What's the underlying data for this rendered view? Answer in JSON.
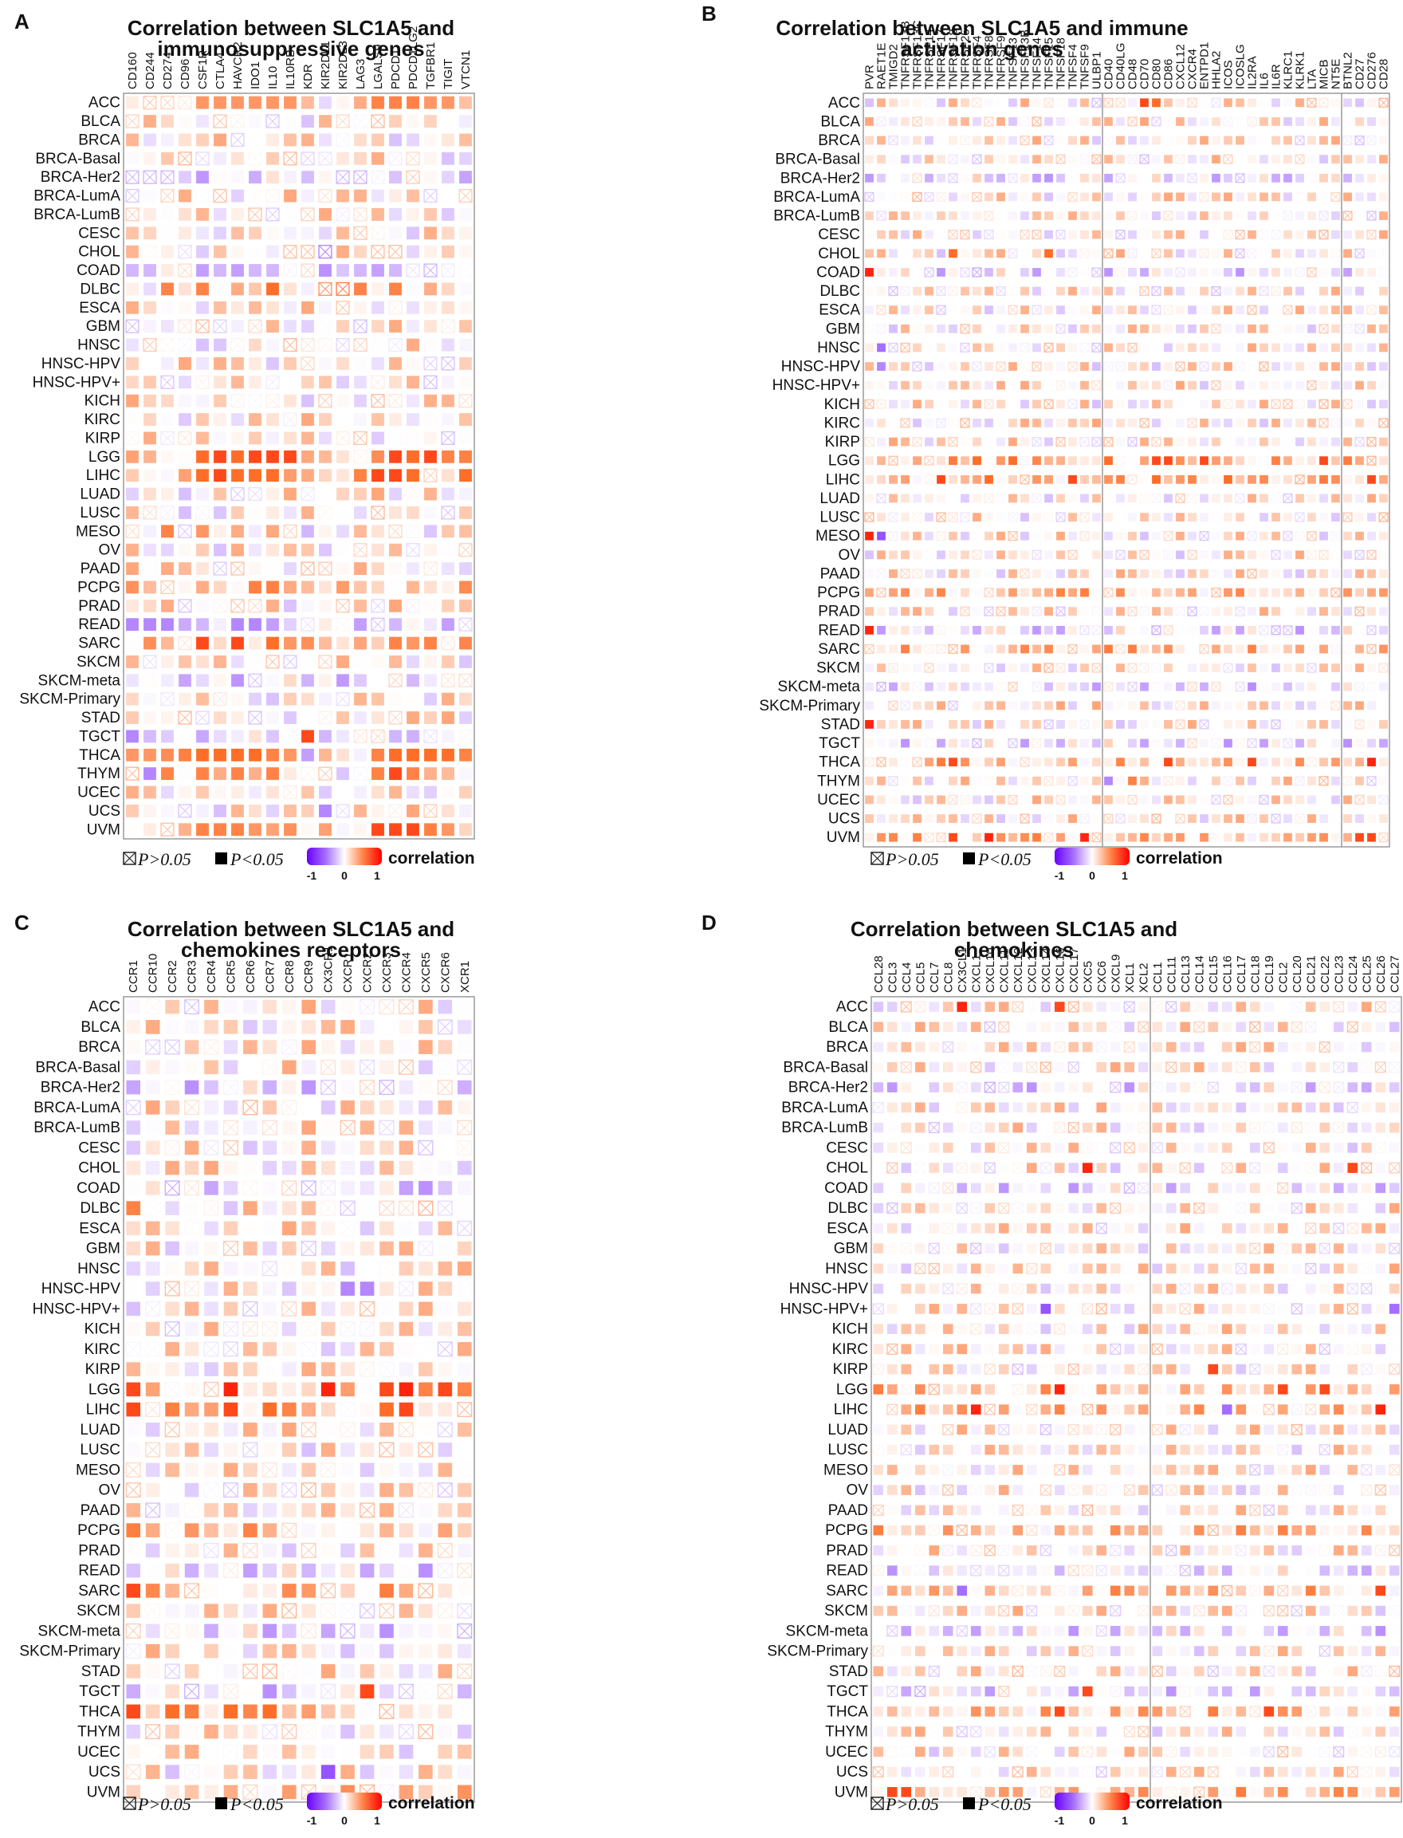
{
  "legend": {
    "ns_label": "P>0.05",
    "sig_label": "P<0.05",
    "scale_min": "-1",
    "scale_mid": "0",
    "scale_max": "1",
    "scale_title": "correlation",
    "colors": {
      "neg": "#6a00ff",
      "zero": "#ffffff",
      "pos": "#ff0000"
    }
  },
  "chart_data": [
    {
      "type": "heatmap",
      "panel": "A",
      "title": "Correlation between SLC1A5 and immunosuppressive genes",
      "title_lines": [
        "Correlation between SLC1A5 and",
        "immunosuppressive genes"
      ],
      "columns": [
        "CD160",
        "CD244",
        "CD274",
        "CD96",
        "CSF1R",
        "CTLA4",
        "HAVCR2",
        "IDO1",
        "IL10",
        "IL10RB",
        "KDR",
        "KIR2DL1",
        "KIR2DL3",
        "LAG3",
        "LGALS9",
        "PDCD1",
        "PDCD1LG2",
        "TGFBR1",
        "TIGIT",
        "VTCN1"
      ],
      "rows": [
        "ACC",
        "BLCA",
        "BRCA",
        "BRCA-Basal",
        "BRCA-Her2",
        "BRCA-LumA",
        "BRCA-LumB",
        "CESC",
        "CHOL",
        "COAD",
        "DLBC",
        "ESCA",
        "GBM",
        "HNSC",
        "HNSC-HPV",
        "HNSC-HPV+",
        "KICH",
        "KIRC",
        "KIRP",
        "LGG",
        "LIHC",
        "LUAD",
        "LUSC",
        "MESO",
        "OV",
        "PAAD",
        "PCPG",
        "PRAD",
        "READ",
        "SARC",
        "SKCM",
        "SKCM-meta",
        "SKCM-Primary",
        "STAD",
        "TGCT",
        "THCA",
        "THYM",
        "UCEC",
        "UCS",
        "UVM"
      ],
      "groups": [],
      "highlights": {
        "ACC": {
          "CD244": [
            0.25,
            1
          ],
          "CD274": [
            0.2,
            1
          ],
          "CD96": [
            0.1,
            1
          ],
          "CSF1R": 0.5,
          "CTLA4": 0.5,
          "HAVCR2": 0.5,
          "IDO1": 0.5,
          "IL10": 0.5,
          "IL10RB": 0.5,
          "LAG3": 0.4,
          "LGALS9": 0.6,
          "PDCD1": 0.6,
          "PDCD1LG2": 0.6,
          "TGFBR1": 0.5,
          "TIGIT": 0.5,
          "VTCN1": 0.3
        },
        "BRCA-Her2": {
          "CD160": [
            -0.3,
            1
          ],
          "CD244": [
            -0.3,
            1
          ],
          "CD274": [
            -0.3,
            1
          ],
          "KIR2DL3": [
            -0.3,
            1
          ],
          "LAG3": [
            -0.3,
            1
          ]
        },
        "CHOL": {
          "IL10RB": [
            0.3,
            1
          ],
          "KDR": [
            0.3,
            1
          ],
          "KIR2DL1": [
            -0.5,
            1
          ],
          "LGALS9": [
            0.3,
            1
          ],
          "PDCD1": [
            0.3,
            1
          ]
        },
        "COAD": {
          "CD160": -0.3,
          "CD244": -0.3,
          "CSF1R": -0.4,
          "CTLA4": -0.3,
          "HAVCR2": -0.4,
          "IDO1": -0.3,
          "IL10": -0.3,
          "LAG3": -0.3,
          "PDCD1": -0.3
        },
        "DLBC": {
          "CD274": 0.6,
          "CSF1R": 0.6,
          "HAVCR2": 0.4,
          "IL10": 0.7,
          "KIR2DL1": [
            0.5,
            1
          ],
          "KIR2DL3": [
            0.6,
            1
          ],
          "LAG3": 0.6,
          "PDCD1": 0.6
        },
        "LGG": {
          "CSF1R": 0.7,
          "CTLA4": 0.8,
          "HAVCR2": 0.7,
          "IDO1": 0.8,
          "IL10": 0.8,
          "IL10RB": 0.8,
          "PDCD1": 0.8,
          "PDCD1LG2": 0.7,
          "TGFBR1": 0.8,
          "TIGIT": 0.6
        },
        "LIHC": {
          "CSF1R": 0.7,
          "CTLA4": 0.8,
          "HAVCR2": 0.7,
          "IDO1": 0.7,
          "IL10": 0.7,
          "LGALS9": 0.8,
          "PDCD1": 0.8,
          "PDCD1LG2": 0.7,
          "VTCN1": 0.7
        },
        "READ": {
          "CD160": -0.5,
          "CD244": -0.5,
          "CD274": -0.5,
          "CSF1R": -0.3,
          "HAVCR2": -0.5,
          "IDO1": -0.5,
          "IL10": -0.4,
          "LAG3": -0.4,
          "PDCD1": -0.3,
          "TIGIT": -0.4
        },
        "SARC": {
          "CSF1R": 0.8,
          "HAVCR2": 0.8,
          "IL10": 0.7,
          "IL10RB": 0.5,
          "PDCD1": 0.6,
          "PDCD1LG2": 0.5,
          "TGFBR1": 0.6
        },
        "THCA": {
          "CD160": 0.5,
          "CD244": 0.5,
          "CSF1R": 0.7,
          "CTLA4": 0.7,
          "HAVCR2": 0.7,
          "IDO1": 0.7,
          "IL10": 0.6,
          "KDR": -0.4,
          "LGALS9": 0.6,
          "PDCD1": 0.7,
          "PDCD1LG2": 0.7,
          "TGFBR1": 0.7,
          "TIGIT": 0.7,
          "VTCN1": 0.6
        },
        "THYM": {
          "CD244": -0.5,
          "CD274": 0.6,
          "CSF1R": 0.6,
          "HAVCR2": 0.6,
          "IL10": 0.6,
          "LGALS9": 0.6,
          "PDCD1": 0.8,
          "PDCD1LG2": 0.6
        },
        "UVM": {
          "CSF1R": 0.6,
          "CTLA4": 0.6,
          "HAVCR2": 0.6,
          "IDO1": 0.5,
          "LGALS9": 0.8,
          "PDCD1": 0.8,
          "PDCD1LG2": 0.8,
          "TIGIT": 0.5
        },
        "TGCT": {
          "CD160": -0.5,
          "KDR": 0.8,
          "KIR2DL1": -0.3
        },
        "MESO": {
          "CD274": 0.6,
          "CSF1R": 0.5,
          "HAVCR2": 0.4,
          "KDR": -0.3
        },
        "UCS": {
          "KIR2DL1": -0.5
        }
      }
    },
    {
      "type": "heatmap",
      "panel": "B",
      "title": "Correlation between SLC1A5 and immune activation genes",
      "title_lines": [
        "Correlation between SLC1A5 and immune",
        "activation genes"
      ],
      "columns": [
        "PVR",
        "RAET1E",
        "TMIGD2",
        "TNFRSF13B",
        "TNFRSF13C",
        "TNFRSF14",
        "TNFRSF17",
        "TNFRSF18",
        "TNFRSF25",
        "TNFRSF4",
        "TNFRSF8",
        "TNFRSF9",
        "TNFSF13",
        "TNFSF13B",
        "TNFSF14",
        "TNFSF15",
        "TNFSF18",
        "TNFSF4",
        "TNFSF9",
        "ULBP1",
        "CD40",
        "CD40LG",
        "CD48",
        "CD70",
        "CD80",
        "CD86",
        "CXCL12",
        "CXCR4",
        "ENTPD1",
        "HHLA2",
        "ICOS",
        "ICOSLG",
        "IL2RA",
        "IL6",
        "IL6R",
        "KLRC1",
        "KLRK1",
        "LTA",
        "MICB",
        "NT5E",
        "BTNL2",
        "CD27",
        "CD276",
        "CD28"
      ],
      "rows": [
        "ACC",
        "BLCA",
        "BRCA",
        "BRCA-Basal",
        "BRCA-Her2",
        "BRCA-LumA",
        "BRCA-LumB",
        "CESC",
        "CHOL",
        "COAD",
        "DLBC",
        "ESCA",
        "GBM",
        "HNSC",
        "HNSC-HPV",
        "HNSC-HPV+",
        "KICH",
        "KIRC",
        "KIRP",
        "LGG",
        "LIHC",
        "LUAD",
        "LUSC",
        "MESO",
        "OV",
        "PAAD",
        "PCPG",
        "PRAD",
        "READ",
        "SARC",
        "SKCM",
        "SKCM-meta",
        "SKCM-Primary",
        "STAD",
        "TGCT",
        "THCA",
        "THYM",
        "UCEC",
        "UCS",
        "UVM"
      ],
      "groups": [
        20,
        40
      ],
      "highlights": {
        "COAD": {
          "PVR": 0.9
        },
        "MESO": {
          "PVR": 0.9,
          "RAET1E": -0.7
        },
        "READ": {
          "PVR": 0.9
        },
        "STAD": {
          "PVR": 0.9
        },
        "HNSC": {
          "RAET1E": -0.6
        },
        "HNSC-HPV": {
          "RAET1E": -0.5
        },
        "LGG": {
          "TNFRSF4": 0.7,
          "TNFSF13": 0.7,
          "CD40": 0.7,
          "CD80": 0.8,
          "CD86": 0.8,
          "ENTPD1": 0.8,
          "MICB": 0.8
        },
        "LIHC": {
          "TNFRSF17": 0.8,
          "TNFRSF8": 0.7,
          "TNFSF4": 0.8,
          "CD80": 0.7,
          "ICOS": 0.7,
          "CD276": 0.8
        },
        "THCA": {
          "TNFRSF18": 0.8,
          "CD86": 0.8,
          "IL2RA": 0.8,
          "CD276": 0.9
        },
        "UVM": {
          "TNFRSF8": 0.9,
          "TNFSF9": 0.9,
          "TNFRSF18": 0.8,
          "CD27": 0.8,
          "CD276": 0.8
        },
        "THYM": {
          "CD40": -0.5,
          "CD48": 0.6
        },
        "ACC": {
          "CD70": 0.8,
          "CD80": 0.7
        },
        "CHOL": {
          "TNFRSF18": 0.7,
          "TNFSF15": 0.7
        }
      }
    },
    {
      "type": "heatmap",
      "panel": "C",
      "title": "Correlation between SLC1A5 and chemokines receptors",
      "title_lines": [
        "Correlation between SLC1A5 and",
        "chemokines receptors"
      ],
      "columns": [
        "CCR1",
        "CCR10",
        "CCR2",
        "CCR3",
        "CCR4",
        "CCR5",
        "CCR6",
        "CCR7",
        "CCR8",
        "CCR9",
        "CX3CR1",
        "CXCR1",
        "CXCR2",
        "CXCR3",
        "CXCR4",
        "CXCR5",
        "CXCR6",
        "XCR1"
      ],
      "rows": [
        "ACC",
        "BLCA",
        "BRCA",
        "BRCA-Basal",
        "BRCA-Her2",
        "BRCA-LumA",
        "BRCA-LumB",
        "CESC",
        "CHOL",
        "COAD",
        "DLBC",
        "ESCA",
        "GBM",
        "HNSC",
        "HNSC-HPV",
        "HNSC-HPV+",
        "KICH",
        "KIRC",
        "KIRP",
        "LGG",
        "LIHC",
        "LUAD",
        "LUSC",
        "MESO",
        "OV",
        "PAAD",
        "PCPG",
        "PRAD",
        "READ",
        "SARC",
        "SKCM",
        "SKCM-meta",
        "SKCM-Primary",
        "STAD",
        "TGCT",
        "THCA",
        "THYM",
        "UCEC",
        "UCS",
        "UVM"
      ],
      "groups": [],
      "highlights": {
        "LGG": {
          "CCR1": 0.8,
          "CCR5": 0.9,
          "CX3CR1": 0.9,
          "CXCR3": 0.8,
          "CXCR4": 0.9,
          "CXCR6": 0.8
        },
        "LIHC": {
          "CCR1": 0.8,
          "CCR5": 0.8,
          "CCR7": 0.7,
          "CXCR3": 0.7,
          "CXCR4": 0.8
        },
        "THCA": {
          "CCR1": 0.8,
          "CCR2": 0.7,
          "CCR5": 0.7,
          "CCR7": 0.7
        },
        "SARC": {
          "CCR1": 0.8
        },
        "TGCT": {
          "CXCR2": 0.8
        },
        "UCS": {
          "CX3CR1": -0.7
        },
        "HNSC-HPV": {
          "CXCR1": -0.5,
          "CXCR2": -0.5
        },
        "DLBC": {
          "CCR1": 0.6
        }
      }
    },
    {
      "type": "heatmap",
      "panel": "D",
      "title": "Correlation between SLC1A5 and chemokines",
      "title_lines": [
        "Correlation between SLC1A5 and",
        "chemokines"
      ],
      "columns": [
        "CCL28",
        "CCL3",
        "CCL4",
        "CCL5",
        "CCL7",
        "CCL8",
        "CX3CL1",
        "CXCL1",
        "CXCL10",
        "CXCL11",
        "CXCL12",
        "CXCL13",
        "CXCL14",
        "CXCL16",
        "CXCL17",
        "CXC5",
        "CXC6",
        "CXCL9",
        "XCL1",
        "XCL2",
        "CCL1",
        "CCL11",
        "CCL13",
        "CCL14",
        "CCL15",
        "CCL16",
        "CCL17",
        "CCL18",
        "CCL19",
        "CCL2",
        "CCL20",
        "CCL21",
        "CCL22",
        "CCL23",
        "CCL24",
        "CCL25",
        "CCL26",
        "CCL27"
      ],
      "rows": [
        "ACC",
        "BLCA",
        "BRCA",
        "BRCA-Basal",
        "BRCA-Her2",
        "BRCA-LumA",
        "BRCA-LumB",
        "CESC",
        "CHOL",
        "COAD",
        "DLBC",
        "ESCA",
        "GBM",
        "HNSC",
        "HNSC-HPV",
        "HNSC-HPV+",
        "KICH",
        "KIRC",
        "KIRP",
        "LGG",
        "LIHC",
        "LUAD",
        "LUSC",
        "MESO",
        "OV",
        "PAAD",
        "PCPG",
        "PRAD",
        "READ",
        "SARC",
        "SKCM",
        "SKCM-meta",
        "SKCM-Primary",
        "STAD",
        "TGCT",
        "THCA",
        "THYM",
        "UCEC",
        "UCS",
        "UVM"
      ],
      "groups": [
        20
      ],
      "highlights": {
        "ACC": {
          "CX3CL1": 0.9,
          "CXCL16": 0.8
        },
        "LIHC": {
          "CXCL1": 0.9,
          "CCL16": -0.6,
          "CCL26": 0.9
        },
        "THCA": {
          "CXCL16": 0.8,
          "CCL19": 0.8
        },
        "LGG": {
          "CXCL16": 0.9,
          "CCL2": 0.8,
          "CCL22": 0.8
        },
        "HNSC-HPV+": {
          "CXCL14": -0.7,
          "CCL27": -0.6
        },
        "SARC": {
          "CX3CL1": -0.6,
          "CCL26": 0.8
        },
        "CHOL": {
          "CXC5": 0.9,
          "CCL24": 0.8
        },
        "TGCT": {
          "CXC5": 0.8
        },
        "KIRP": {
          "CCL15": 0.8
        },
        "UVM": {
          "CCL3": 0.8,
          "CCL4": 0.8
        }
      }
    }
  ]
}
